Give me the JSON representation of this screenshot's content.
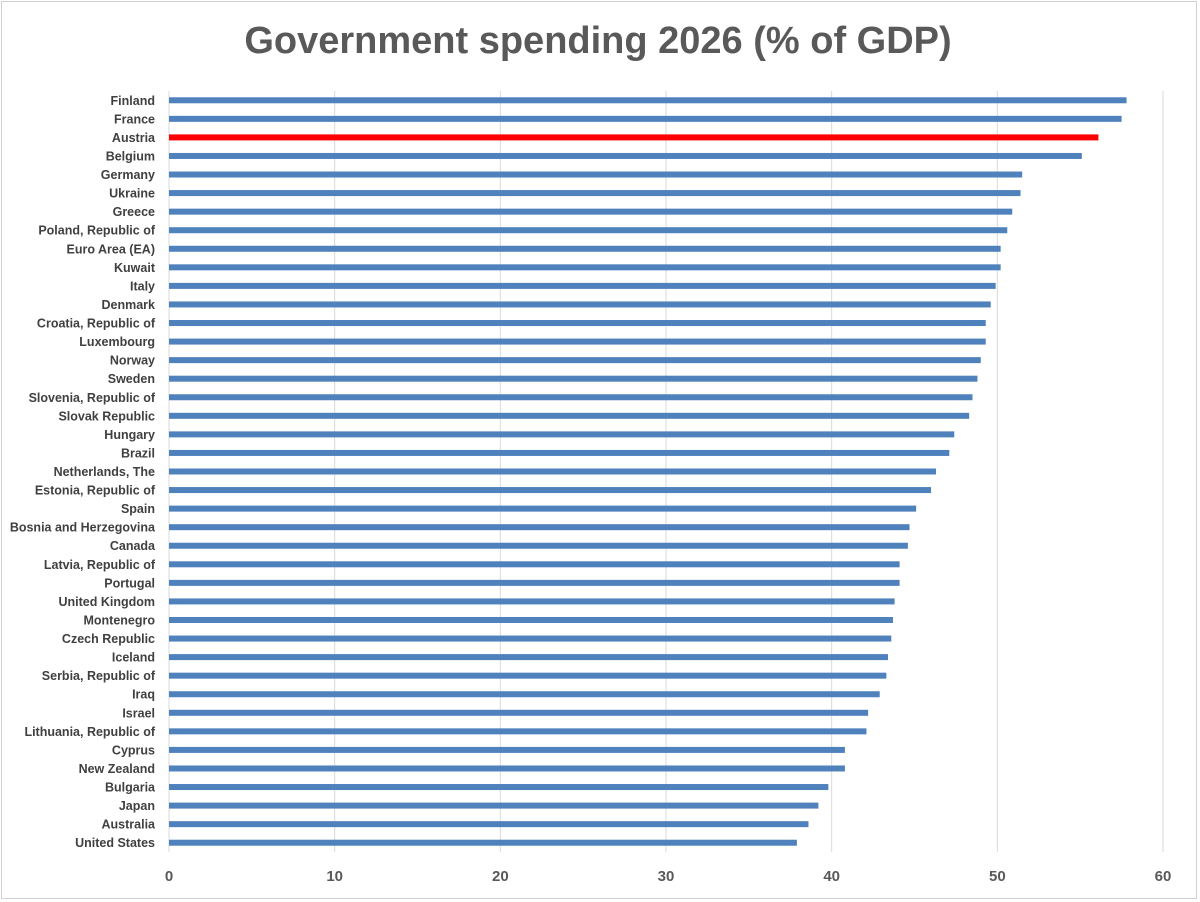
{
  "chart_data": {
    "type": "bar",
    "orientation": "horizontal",
    "title": "Government spending 2026 (% of GDP)",
    "xlabel": "",
    "ylabel": "",
    "xlim": [
      0,
      60
    ],
    "xticks": [
      "0",
      "10",
      "20",
      "30",
      "40",
      "50",
      "60"
    ],
    "grid": true,
    "legend": "none",
    "bar_color": "#4f81bd",
    "highlight_color": "#ff0000",
    "highlight_category": "Austria",
    "categories": [
      "Finland",
      "France",
      "Austria",
      "Belgium",
      "Germany",
      "Ukraine",
      "Greece",
      "Poland, Republic of",
      "Euro Area (EA)",
      "Kuwait",
      "Italy",
      "Denmark",
      "Croatia, Republic of",
      "Luxembourg",
      "Norway",
      "Sweden",
      "Slovenia, Republic of",
      "Slovak Republic",
      "Hungary",
      "Brazil",
      "Netherlands, The",
      "Estonia, Republic of",
      "Spain",
      "Bosnia and Herzegovina",
      "Canada",
      "Latvia, Republic of",
      "Portugal",
      "United Kingdom",
      "Montenegro",
      "Czech Republic",
      "Iceland",
      "Serbia, Republic of",
      "Iraq",
      "Israel",
      "Lithuania, Republic of",
      "Cyprus",
      "New Zealand",
      "Bulgaria",
      "Japan",
      "Australia",
      "United States"
    ],
    "values": [
      57.8,
      57.5,
      56.1,
      55.1,
      51.5,
      51.4,
      50.9,
      50.6,
      50.2,
      50.2,
      49.9,
      49.6,
      49.3,
      49.3,
      49.0,
      48.8,
      48.5,
      48.3,
      47.4,
      47.1,
      46.3,
      46.0,
      45.1,
      44.7,
      44.6,
      44.1,
      44.1,
      43.8,
      43.7,
      43.6,
      43.4,
      43.3,
      42.9,
      42.2,
      42.1,
      40.8,
      40.8,
      39.8,
      39.2,
      38.6,
      37.9
    ]
  }
}
